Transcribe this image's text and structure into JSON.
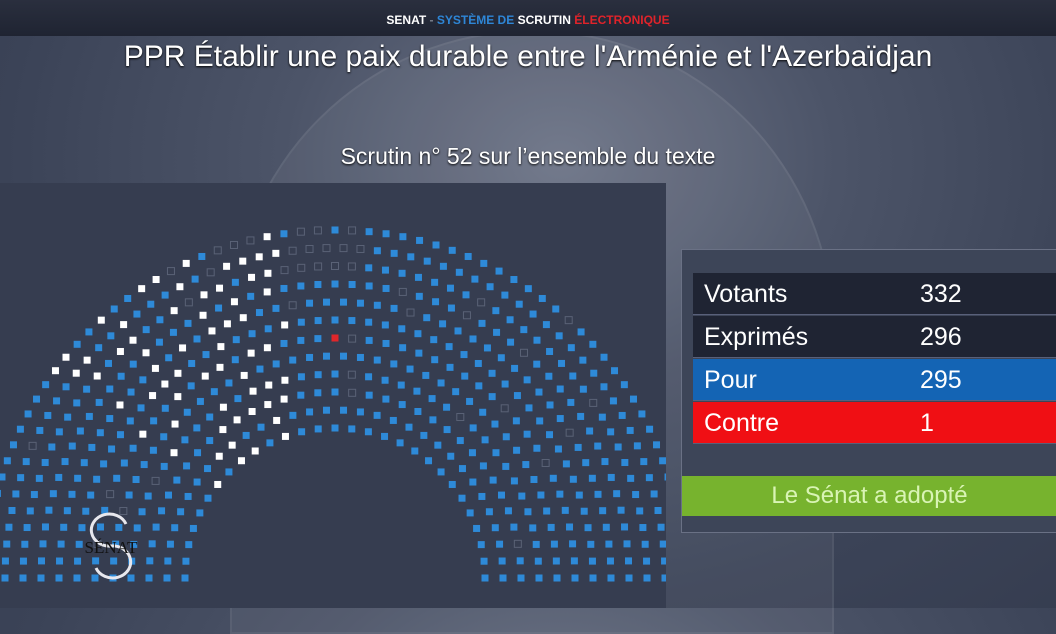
{
  "header": {
    "brand": "SENAT",
    "sep": " - ",
    "system": "SYSTÈME DE",
    "scrutin": "SCRUTIN",
    "electronique": "ÉLECTRONIQUE"
  },
  "title": "PPR Établir une paix durable entre l'Arménie et l'Azerbaïdjan",
  "subtitle": "Scrutin n° 52 sur l’ensemble du texte",
  "results": {
    "rows": [
      {
        "label": "Votants",
        "value": "332",
        "color": "#1f2433"
      },
      {
        "label": "Exprimés",
        "value": "296",
        "color": "#1f2433"
      },
      {
        "label": "Pour",
        "value": "295",
        "color": "#1464b4"
      },
      {
        "label": "Contre",
        "value": "1",
        "color": "#f00f14"
      }
    ],
    "outcome": "Le Sénat a adopté"
  },
  "logo_text": "SÉNAT",
  "colors": {
    "pour": "#2e8ad8",
    "abstention": "#ffffff",
    "contre": "#e0262a",
    "absent": "#5a6276"
  }
}
